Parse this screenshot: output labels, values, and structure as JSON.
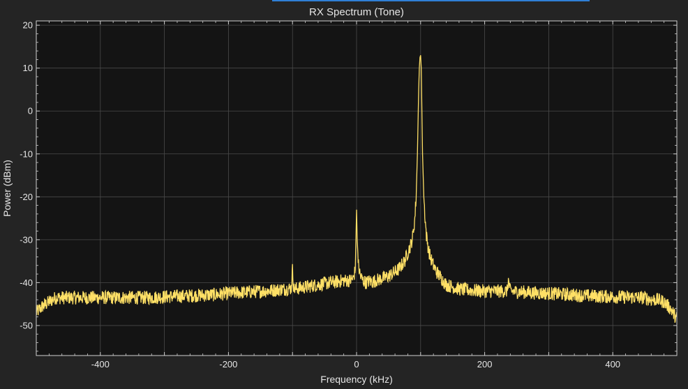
{
  "chart_data": {
    "type": "line",
    "title": "RX Spectrum (Tone)",
    "xlabel": "Frequency (kHz)",
    "ylabel": "Power (dBm)",
    "xlim": [
      -500,
      500
    ],
    "ylim": [
      -57,
      21
    ],
    "x_ticks": [
      -400,
      -200,
      0,
      200,
      400
    ],
    "y_ticks": [
      20,
      10,
      0,
      -10,
      -20,
      -30,
      -40,
      -50
    ],
    "grid": true,
    "legend": "none",
    "colors": {
      "background": "#242424",
      "plot_area": "#141414",
      "grid": "#4a4a4a",
      "axes": "#d0d0d0",
      "text": "#e6e6e6",
      "trace": "#ffe066",
      "accent": "#2f7fd6"
    },
    "series": [
      {
        "x": [
          -500,
          -490,
          -480,
          -470,
          -460,
          -450,
          -420,
          -400,
          -380,
          -350,
          -320,
          -300,
          -280,
          -250,
          -220,
          -200,
          -180,
          -150,
          -130,
          -120,
          -110,
          -102,
          -100,
          -98,
          -90,
          -80,
          -60,
          -50,
          -40,
          -30,
          -20,
          -10,
          -5,
          -2,
          0,
          1,
          3,
          6,
          10,
          15,
          20,
          25,
          30,
          35,
          40,
          45,
          50,
          55,
          60,
          65,
          70,
          75,
          80,
          85,
          88,
          91,
          93,
          95,
          97,
          98,
          99,
          100,
          101,
          102,
          103,
          105,
          107,
          109,
          112,
          115,
          120,
          125,
          130,
          135,
          140,
          150,
          160,
          180,
          200,
          220,
          235,
          237,
          240,
          260,
          280,
          300,
          320,
          350,
          380,
          400,
          420,
          440,
          450,
          460,
          470,
          480,
          490,
          500
        ],
        "y": [
          -47,
          -45.5,
          -44.5,
          -43.5,
          -43.5,
          -43.5,
          -43.5,
          -43.5,
          -43.5,
          -43.5,
          -43.5,
          -43.3,
          -43.2,
          -43,
          -42.8,
          -42.5,
          -42.3,
          -42,
          -41.8,
          -41.6,
          -41.5,
          -41.3,
          -37,
          -41.5,
          -41.3,
          -41,
          -40.5,
          -40.2,
          -40,
          -39.8,
          -39.5,
          -39.5,
          -39,
          -37,
          -23,
          -30,
          -36,
          -38.5,
          -39.5,
          -40,
          -39.6,
          -39.8,
          -39.5,
          -39.3,
          -39,
          -38.8,
          -38.5,
          -38,
          -37.5,
          -37,
          -36,
          -35,
          -33,
          -31,
          -29,
          -25,
          -20,
          -10,
          5,
          10,
          12.5,
          13,
          10,
          0,
          -10,
          -20,
          -25,
          -29,
          -32,
          -34,
          -36,
          -37.5,
          -38.5,
          -39.5,
          -40.5,
          -41,
          -41.5,
          -41.8,
          -42,
          -42,
          -42,
          -39.5,
          -42,
          -42.2,
          -42.4,
          -42.5,
          -42.7,
          -43,
          -43.2,
          -43.3,
          -43.4,
          -43.5,
          -43.5,
          -44,
          -44,
          -44.5,
          -46,
          -48.5
        ]
      }
    ]
  }
}
